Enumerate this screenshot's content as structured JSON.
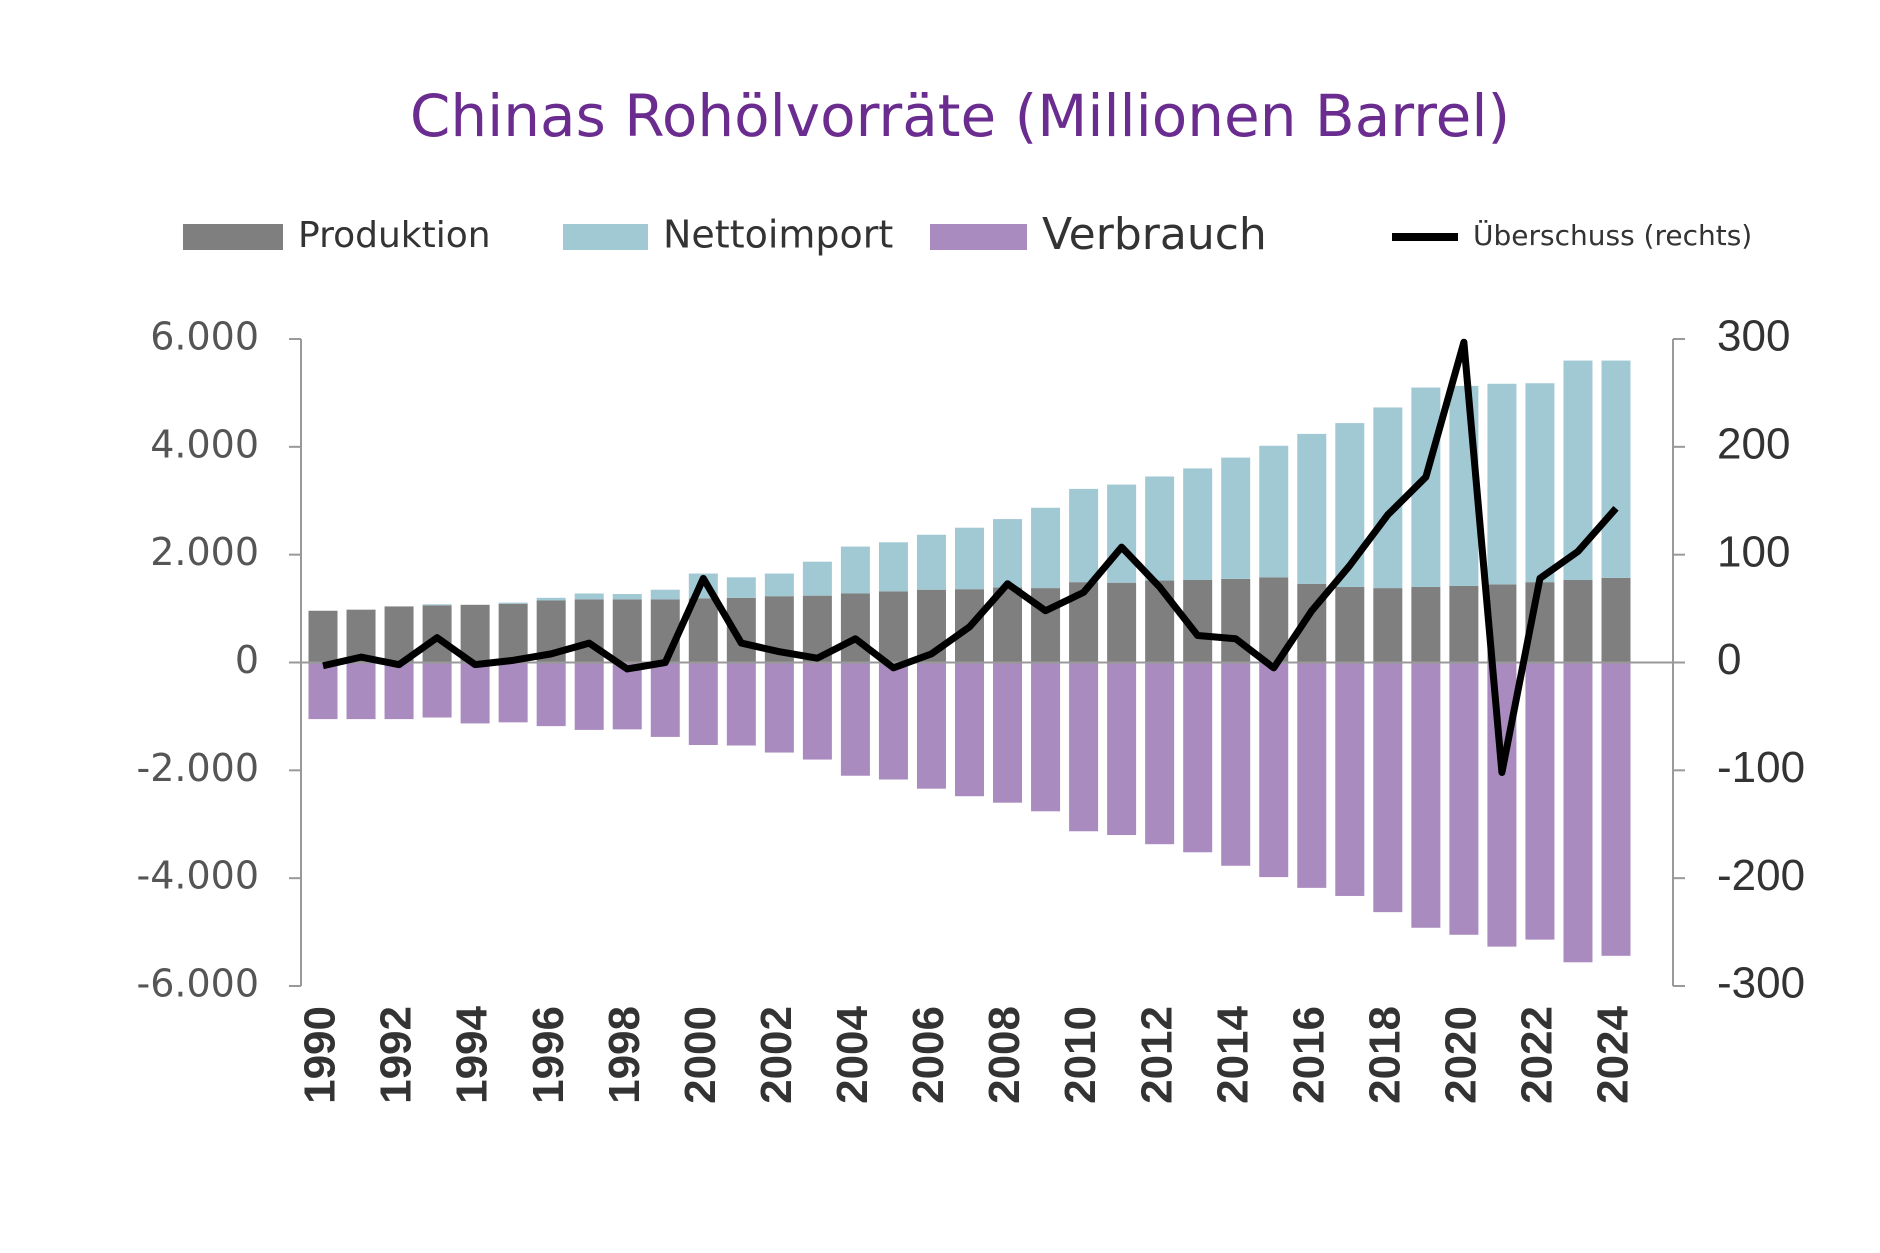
{
  "chart_data": {
    "type": "bar",
    "title": "Chinas Rohölvorräte (Millionen Barrel)",
    "stacked": true,
    "categories": [
      "1990",
      null,
      "1992",
      null,
      "1994",
      null,
      "1996",
      null,
      "1998",
      null,
      "2000",
      null,
      "2002",
      null,
      "2004",
      null,
      "2006",
      null,
      "2008",
      null,
      "2010",
      null,
      "2012",
      null,
      "2014",
      null,
      "2016",
      null,
      "2018",
      null,
      "2020",
      null,
      "2022",
      null,
      "2024"
    ],
    "series": [
      {
        "name": "Produktion",
        "color": "#7f7f7f",
        "type": "bar",
        "values": [
          960,
          980,
          1040,
          1060,
          1070,
          1090,
          1150,
          1170,
          1170,
          1170,
          1190,
          1200,
          1230,
          1240,
          1280,
          1320,
          1350,
          1360,
          1390,
          1380,
          1490,
          1480,
          1520,
          1530,
          1550,
          1580,
          1460,
          1400,
          1380,
          1400,
          1420,
          1450,
          1490,
          1530,
          1570
        ]
      },
      {
        "name": "Nettoimport",
        "color": "#a0c9d4",
        "type": "bar",
        "values": [
          0,
          0,
          0,
          20,
          0,
          20,
          50,
          110,
          100,
          180,
          460,
          380,
          420,
          630,
          870,
          910,
          1020,
          1140,
          1270,
          1490,
          1730,
          1820,
          1930,
          2070,
          2250,
          2440,
          2780,
          3040,
          3350,
          3700,
          3710,
          3720,
          3690,
          4070,
          4030
        ]
      },
      {
        "name": "Verbrauch",
        "color": "#a98bbf",
        "type": "bar",
        "values": [
          -1050,
          -1050,
          -1050,
          -1020,
          -1130,
          -1110,
          -1180,
          -1250,
          -1240,
          -1380,
          -1530,
          -1540,
          -1670,
          -1800,
          -2100,
          -2170,
          -2340,
          -2480,
          -2600,
          -2760,
          -3130,
          -3200,
          -3370,
          -3520,
          -3770,
          -3980,
          -4180,
          -4330,
          -4630,
          -4920,
          -5050,
          -5270,
          -5140,
          -5560,
          -5440
        ]
      },
      {
        "name": "Überschuss (rechts)",
        "color": "#000000",
        "type": "line",
        "axis": "y2",
        "values": [
          -3,
          5,
          -2,
          23,
          -2,
          2,
          8,
          18,
          -6,
          0,
          78,
          18,
          10,
          4,
          22,
          -5,
          8,
          33,
          73,
          48,
          65,
          107,
          70,
          25,
          22,
          -5,
          48,
          90,
          137,
          172,
          297,
          -102,
          78,
          103,
          143
        ]
      }
    ],
    "ylim": [
      -6000,
      6000
    ],
    "yticks": [
      {
        "value": 6000,
        "label": "6.000"
      },
      {
        "value": 4000,
        "label": "4.000"
      },
      {
        "value": 2000,
        "label": "2.000"
      },
      0,
      {
        "value": -2000,
        "label": "-2.000"
      },
      {
        "value": -4000,
        "label": "-4.000"
      },
      {
        "value": -6000,
        "label": "-6.000"
      }
    ],
    "y2lim": [
      -300,
      300
    ],
    "y2ticks": [
      300,
      200,
      100,
      0,
      -100,
      -200,
      -300
    ]
  }
}
